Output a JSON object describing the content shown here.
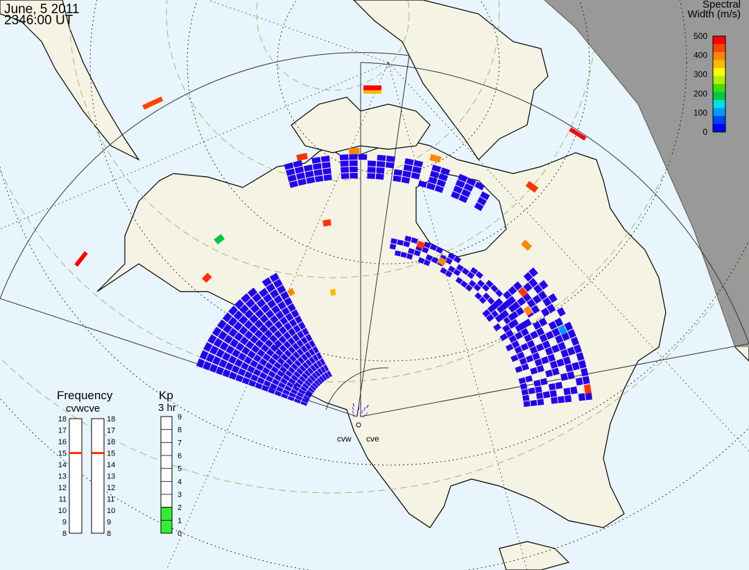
{
  "date": "June, 5 2011",
  "time": "2346:00 UT",
  "colorbar": {
    "title_line1": "Spectral",
    "title_line2": "Width (m/s)",
    "ticks": [
      "500",
      "400",
      "300",
      "200",
      "100",
      "0"
    ],
    "colors": [
      "#ff0000",
      "#ff4400",
      "#ff8800",
      "#ffbb00",
      "#ffff00",
      "#b0f000",
      "#40e000",
      "#00c840",
      "#00e0e0",
      "#0099ff",
      "#0044ff",
      "#0000ff"
    ]
  },
  "frequency": {
    "title": "Frequency",
    "subtitle": "cvwcve",
    "left_ticks": [
      "18",
      "17",
      "16",
      "15",
      "14",
      "13",
      "12",
      "11",
      "10",
      "9",
      "8"
    ],
    "right_ticks": [
      "18",
      "17",
      "16",
      "15",
      "14",
      "13",
      "12",
      "11",
      "10",
      "9",
      "8"
    ],
    "cvw_value": 15,
    "cve_value": 15
  },
  "kp": {
    "title": "Kp",
    "subtitle": "3 hr",
    "ticks": [
      "9",
      "8",
      "7",
      "6",
      "5",
      "4",
      "3",
      "2",
      "1",
      "0"
    ],
    "value": 2
  },
  "stations": {
    "west_label": "cvw",
    "east_label": "cve"
  },
  "colors": {
    "ocean": "#e8f5fc",
    "land": "#f5f3e4",
    "night": "#999999",
    "echo_main": "#2200ee"
  }
}
